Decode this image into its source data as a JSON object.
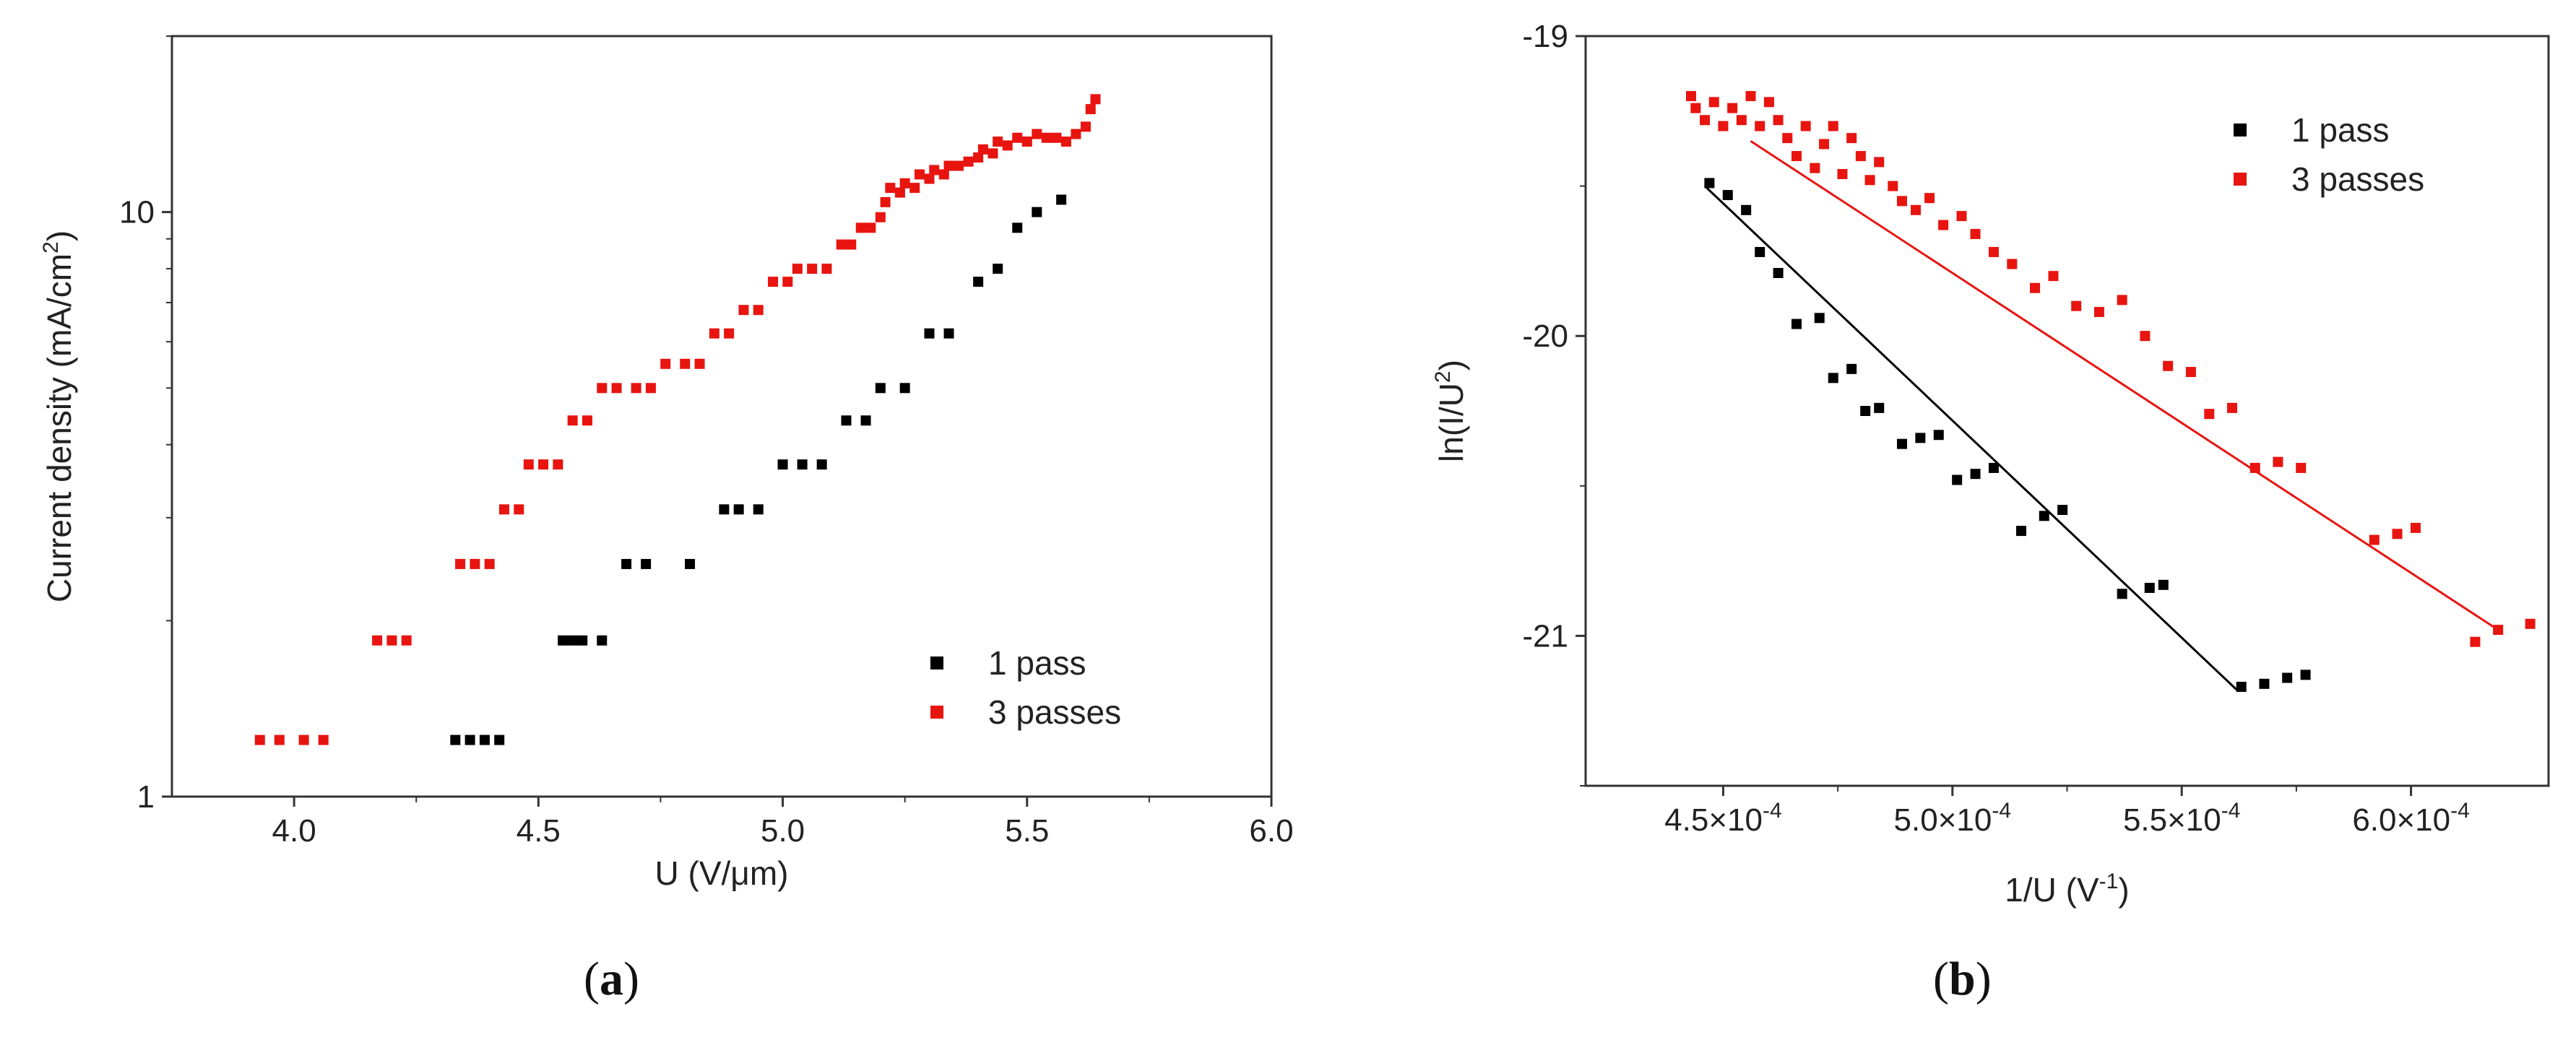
{
  "colors": {
    "series_1pass": "#000000",
    "series_3passes": "#e8140f",
    "axis": "#333333"
  },
  "panel_labels": {
    "a": "a",
    "b": "b"
  },
  "chart_data": [
    {
      "id": "a",
      "type": "scatter",
      "yscale": "log",
      "title": "",
      "xlabel": "U (V/μm)",
      "ylabel_main": "Current density (mA/cm",
      "ylabel_sup": "2",
      "ylabel_tail": ")",
      "xlim": [
        3.75,
        6.0
      ],
      "ylim": [
        1,
        20
      ],
      "xticks": [
        {
          "v": 4.0,
          "label": "4.0"
        },
        {
          "v": 4.5,
          "label": "4.5"
        },
        {
          "v": 5.0,
          "label": "5.0"
        },
        {
          "v": 5.5,
          "label": "5.5"
        },
        {
          "v": 6.0,
          "label": "6.0"
        }
      ],
      "yticks": [
        {
          "v": 1,
          "label": "1"
        },
        {
          "v": 10,
          "label": "10"
        }
      ],
      "legend": {
        "position": "bottom-right",
        "labels": [
          "1 pass",
          "3 passes"
        ]
      },
      "series": [
        {
          "name": "1 pass",
          "points": [
            [
              4.33,
              1.25
            ],
            [
              4.36,
              1.25
            ],
            [
              4.39,
              1.25
            ],
            [
              4.42,
              1.25
            ],
            [
              4.55,
              1.85
            ],
            [
              4.57,
              1.85
            ],
            [
              4.59,
              1.85
            ],
            [
              4.63,
              1.85
            ],
            [
              4.68,
              2.5
            ],
            [
              4.72,
              2.5
            ],
            [
              4.81,
              2.5
            ],
            [
              4.88,
              3.1
            ],
            [
              4.91,
              3.1
            ],
            [
              4.95,
              3.1
            ],
            [
              5.0,
              3.7
            ],
            [
              5.04,
              3.7
            ],
            [
              5.08,
              3.7
            ],
            [
              5.13,
              4.4
            ],
            [
              5.17,
              4.4
            ],
            [
              5.2,
              5.0
            ],
            [
              5.25,
              5.0
            ],
            [
              5.3,
              6.2
            ],
            [
              5.34,
              6.2
            ],
            [
              5.4,
              7.6
            ],
            [
              5.44,
              8.0
            ],
            [
              5.48,
              9.4
            ],
            [
              5.52,
              10.0
            ],
            [
              5.57,
              10.5
            ]
          ]
        },
        {
          "name": "3 passes",
          "points": [
            [
              3.93,
              1.25
            ],
            [
              3.97,
              1.25
            ],
            [
              4.02,
              1.25
            ],
            [
              4.06,
              1.25
            ],
            [
              4.17,
              1.85
            ],
            [
              4.2,
              1.85
            ],
            [
              4.23,
              1.85
            ],
            [
              4.34,
              2.5
            ],
            [
              4.37,
              2.5
            ],
            [
              4.4,
              2.5
            ],
            [
              4.43,
              3.1
            ],
            [
              4.46,
              3.1
            ],
            [
              4.48,
              3.7
            ],
            [
              4.51,
              3.7
            ],
            [
              4.54,
              3.7
            ],
            [
              4.57,
              4.4
            ],
            [
              4.6,
              4.4
            ],
            [
              4.63,
              5.0
            ],
            [
              4.66,
              5.0
            ],
            [
              4.7,
              5.0
            ],
            [
              4.73,
              5.0
            ],
            [
              4.76,
              5.5
            ],
            [
              4.8,
              5.5
            ],
            [
              4.83,
              5.5
            ],
            [
              4.86,
              6.2
            ],
            [
              4.89,
              6.2
            ],
            [
              4.92,
              6.8
            ],
            [
              4.95,
              6.8
            ],
            [
              4.98,
              7.6
            ],
            [
              5.01,
              7.6
            ],
            [
              5.03,
              8.0
            ],
            [
              5.06,
              8.0
            ],
            [
              5.09,
              8.0
            ],
            [
              5.12,
              8.8
            ],
            [
              5.14,
              8.8
            ],
            [
              5.16,
              9.4
            ],
            [
              5.18,
              9.4
            ],
            [
              5.2,
              9.8
            ],
            [
              5.21,
              10.4
            ],
            [
              5.22,
              11.0
            ],
            [
              5.24,
              10.8
            ],
            [
              5.25,
              11.2
            ],
            [
              5.27,
              11.0
            ],
            [
              5.28,
              11.6
            ],
            [
              5.3,
              11.4
            ],
            [
              5.31,
              11.8
            ],
            [
              5.33,
              11.6
            ],
            [
              5.34,
              12.0
            ],
            [
              5.36,
              12.0
            ],
            [
              5.38,
              12.2
            ],
            [
              5.4,
              12.4
            ],
            [
              5.41,
              12.8
            ],
            [
              5.43,
              12.6
            ],
            [
              5.44,
              13.2
            ],
            [
              5.46,
              13.0
            ],
            [
              5.48,
              13.4
            ],
            [
              5.5,
              13.2
            ],
            [
              5.52,
              13.6
            ],
            [
              5.54,
              13.4
            ],
            [
              5.56,
              13.4
            ],
            [
              5.58,
              13.2
            ],
            [
              5.6,
              13.6
            ],
            [
              5.62,
              14.0
            ],
            [
              5.63,
              15.0
            ],
            [
              5.64,
              15.6
            ]
          ]
        }
      ]
    },
    {
      "id": "b",
      "type": "scatter",
      "title": "",
      "xlabel_main": "1/U (V",
      "xlabel_sup": "-1",
      "xlabel_tail": ")",
      "ylabel_main": "ln(I/U",
      "ylabel_sup": "2",
      "ylabel_tail": ")",
      "xlim": [
        0.00042,
        0.00063
      ],
      "ylim": [
        -21.5,
        -19.0
      ],
      "xticks": [
        {
          "v": 0.00045,
          "mant": "4.5×10",
          "exp": "-4"
        },
        {
          "v": 0.0005,
          "mant": "5.0×10",
          "exp": "-4"
        },
        {
          "v": 0.00055,
          "mant": "5.5×10",
          "exp": "-4"
        },
        {
          "v": 0.0006,
          "mant": "6.0×10",
          "exp": "-4"
        }
      ],
      "yticks": [
        {
          "v": -19,
          "label": "-19"
        },
        {
          "v": -20,
          "label": "-20"
        },
        {
          "v": -21,
          "label": "-21"
        }
      ],
      "legend": {
        "position": "top-right",
        "labels": [
          "1 pass",
          "3 passes"
        ]
      },
      "series": [
        {
          "name": "1 pass",
          "points": [
            [
              0.000447,
              -19.49
            ],
            [
              0.000451,
              -19.53
            ],
            [
              0.000455,
              -19.58
            ],
            [
              0.000458,
              -19.72
            ],
            [
              0.000462,
              -19.79
            ],
            [
              0.000466,
              -19.96
            ],
            [
              0.000471,
              -19.94
            ],
            [
              0.000474,
              -20.14
            ],
            [
              0.000478,
              -20.11
            ],
            [
              0.000481,
              -20.25
            ],
            [
              0.000484,
              -20.24
            ],
            [
              0.000489,
              -20.36
            ],
            [
              0.000493,
              -20.34
            ],
            [
              0.000497,
              -20.33
            ],
            [
              0.000501,
              -20.48
            ],
            [
              0.000505,
              -20.46
            ],
            [
              0.000509,
              -20.44
            ],
            [
              0.000515,
              -20.65
            ],
            [
              0.00052,
              -20.6
            ],
            [
              0.000524,
              -20.58
            ],
            [
              0.000537,
              -20.86
            ],
            [
              0.000543,
              -20.84
            ],
            [
              0.000546,
              -20.83
            ],
            [
              0.000563,
              -21.17
            ],
            [
              0.000568,
              -21.16
            ],
            [
              0.000573,
              -21.14
            ],
            [
              0.000577,
              -21.13
            ]
          ],
          "fit": [
            [
              0.000446,
              -19.5
            ],
            [
              0.000562,
              -21.18
            ]
          ]
        },
        {
          "name": "3 passes",
          "points": [
            [
              0.000443,
              -19.2
            ],
            [
              0.000444,
              -19.24
            ],
            [
              0.000446,
              -19.28
            ],
            [
              0.000448,
              -19.22
            ],
            [
              0.00045,
              -19.3
            ],
            [
              0.000452,
              -19.24
            ],
            [
              0.000454,
              -19.28
            ],
            [
              0.000456,
              -19.2
            ],
            [
              0.000458,
              -19.3
            ],
            [
              0.00046,
              -19.22
            ],
            [
              0.000462,
              -19.28
            ],
            [
              0.000464,
              -19.34
            ],
            [
              0.000466,
              -19.4
            ],
            [
              0.000468,
              -19.3
            ],
            [
              0.00047,
              -19.44
            ],
            [
              0.000472,
              -19.36
            ],
            [
              0.000474,
              -19.3
            ],
            [
              0.000476,
              -19.46
            ],
            [
              0.000478,
              -19.34
            ],
            [
              0.00048,
              -19.4
            ],
            [
              0.000482,
              -19.48
            ],
            [
              0.000484,
              -19.42
            ],
            [
              0.000487,
              -19.5
            ],
            [
              0.000489,
              -19.55
            ],
            [
              0.000492,
              -19.58
            ],
            [
              0.000495,
              -19.54
            ],
            [
              0.000498,
              -19.63
            ],
            [
              0.000502,
              -19.6
            ],
            [
              0.000505,
              -19.66
            ],
            [
              0.000509,
              -19.72
            ],
            [
              0.000513,
              -19.76
            ],
            [
              0.000518,
              -19.84
            ],
            [
              0.000522,
              -19.8
            ],
            [
              0.000527,
              -19.9
            ],
            [
              0.000532,
              -19.92
            ],
            [
              0.000537,
              -19.88
            ],
            [
              0.000542,
              -20.0
            ],
            [
              0.000547,
              -20.1
            ],
            [
              0.000552,
              -20.12
            ],
            [
              0.000556,
              -20.26
            ],
            [
              0.000561,
              -20.24
            ],
            [
              0.000566,
              -20.44
            ],
            [
              0.000571,
              -20.42
            ],
            [
              0.000576,
              -20.44
            ],
            [
              0.000592,
              -20.68
            ],
            [
              0.000597,
              -20.66
            ],
            [
              0.000601,
              -20.64
            ],
            [
              0.000614,
              -21.02
            ],
            [
              0.000619,
              -20.98
            ],
            [
              0.000626,
              -20.96
            ]
          ],
          "fit": [
            [
              0.000456,
              -19.35
            ],
            [
              0.000619,
              -20.98
            ]
          ]
        }
      ]
    }
  ]
}
